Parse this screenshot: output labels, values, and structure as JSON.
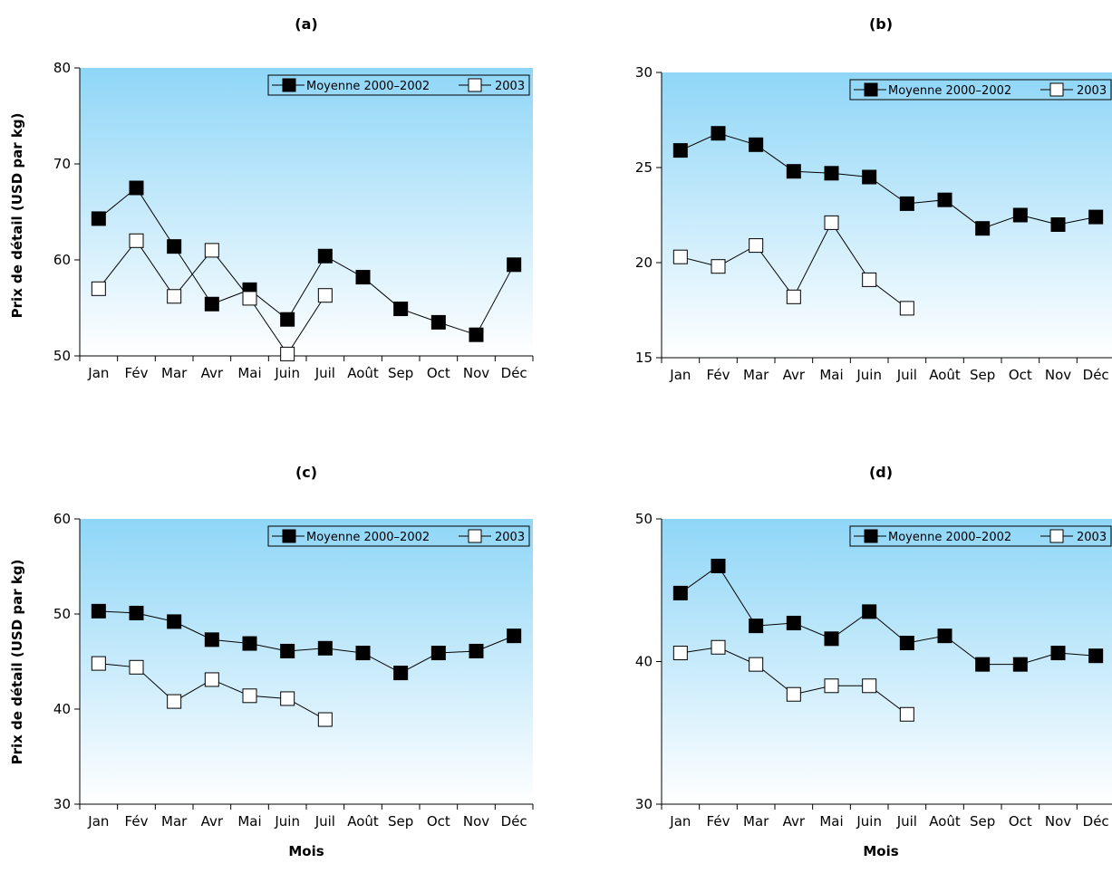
{
  "y_axis_title": "Prix de détail (USD par kg)",
  "x_axis_title": "Mois",
  "legend": {
    "series_a": "Moyenne 2000–2002",
    "series_b": "2003"
  },
  "colors": {
    "gradient_top": "#8fd6f7",
    "gradient_bottom": "#ffffff",
    "line": "#000000",
    "marker_filled": "#000000",
    "marker_open": "#ffffff"
  },
  "chart_data": [
    {
      "type": "line",
      "title": "(a)",
      "categories": [
        "Jan",
        "Fév",
        "Mar",
        "Avr",
        "Mai",
        "Juin",
        "Juil",
        "Août",
        "Sep",
        "Oct",
        "Nov",
        "Déc"
      ],
      "ylim": [
        50,
        80
      ],
      "yticks": [
        50,
        60,
        70,
        80
      ],
      "ylabel": "Prix de détail (USD par kg)",
      "xlabel": "",
      "series": [
        {
          "name": "Moyenne 2000–2002",
          "values": [
            64.3,
            67.5,
            61.4,
            55.4,
            56.9,
            53.8,
            60.4,
            58.2,
            54.9,
            53.5,
            52.2,
            59.5
          ]
        },
        {
          "name": "2003",
          "values": [
            57.0,
            62.0,
            56.2,
            61.0,
            56.0,
            50.2,
            56.3,
            null,
            null,
            null,
            null,
            null
          ]
        }
      ]
    },
    {
      "type": "line",
      "title": "(b)",
      "categories": [
        "Jan",
        "Fév",
        "Mar",
        "Avr",
        "Mai",
        "Juin",
        "Juil",
        "Août",
        "Sep",
        "Oct",
        "Nov",
        "Déc"
      ],
      "ylim": [
        15,
        30
      ],
      "yticks": [
        15,
        20,
        25,
        30
      ],
      "ylabel": "",
      "xlabel": "",
      "series": [
        {
          "name": "Moyenne 2000–2002",
          "values": [
            25.9,
            26.8,
            26.2,
            24.8,
            24.7,
            24.5,
            23.1,
            23.3,
            21.8,
            22.5,
            22.0,
            22.4
          ]
        },
        {
          "name": "2003",
          "values": [
            20.3,
            19.8,
            20.9,
            18.2,
            22.1,
            19.1,
            17.6,
            null,
            null,
            null,
            null,
            null
          ]
        }
      ]
    },
    {
      "type": "line",
      "title": "(c)",
      "categories": [
        "Jan",
        "Fév",
        "Mar",
        "Avr",
        "Mai",
        "Juin",
        "Juil",
        "Août",
        "Sep",
        "Oct",
        "Nov",
        "Déc"
      ],
      "ylim": [
        30,
        60
      ],
      "yticks": [
        30,
        40,
        50,
        60
      ],
      "ylabel": "Prix de détail (USD par kg)",
      "xlabel": "Mois",
      "series": [
        {
          "name": "Moyenne 2000–2002",
          "values": [
            50.3,
            50.1,
            49.2,
            47.3,
            46.9,
            46.1,
            46.4,
            45.9,
            43.8,
            45.9,
            46.1,
            47.7
          ]
        },
        {
          "name": "2003",
          "values": [
            44.8,
            44.4,
            40.8,
            43.1,
            41.4,
            41.1,
            38.9,
            null,
            null,
            null,
            null,
            null
          ]
        }
      ]
    },
    {
      "type": "line",
      "title": "(d)",
      "categories": [
        "Jan",
        "Fév",
        "Mar",
        "Avr",
        "Mai",
        "Juin",
        "Juil",
        "Août",
        "Sep",
        "Oct",
        "Nov",
        "Déc"
      ],
      "ylim": [
        30,
        50
      ],
      "yticks": [
        30,
        40,
        50
      ],
      "ylabel": "",
      "xlabel": "Mois",
      "series": [
        {
          "name": "Moyenne 2000–2002",
          "values": [
            44.8,
            46.7,
            42.5,
            42.7,
            41.6,
            43.5,
            41.3,
            41.8,
            39.8,
            39.8,
            40.6,
            40.4
          ]
        },
        {
          "name": "2003",
          "values": [
            40.6,
            41.0,
            39.8,
            37.7,
            38.3,
            38.3,
            36.3,
            null,
            null,
            null,
            null,
            null
          ]
        }
      ]
    }
  ]
}
